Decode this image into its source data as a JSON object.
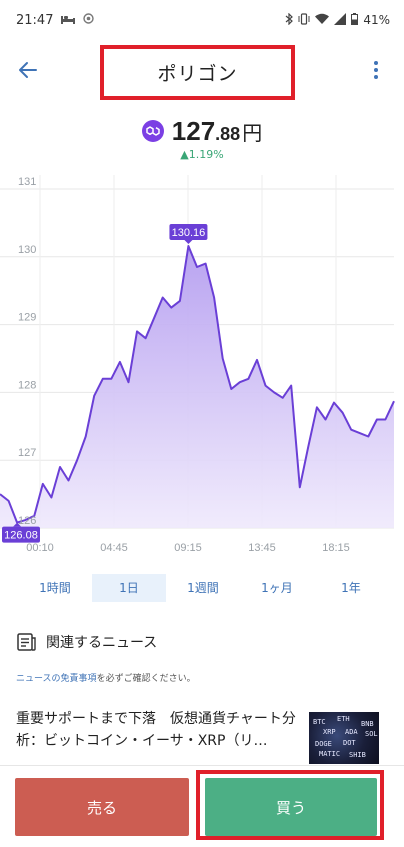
{
  "status_bar": {
    "time": "21:47",
    "battery": "41%",
    "icons": [
      "bed-icon",
      "notification-icon",
      "bluetooth-icon",
      "vibrate-icon",
      "wifi-icon",
      "signal-icon",
      "battery-icon"
    ]
  },
  "app_bar": {
    "title": "ポリゴン",
    "back_icon": "back-arrow-icon",
    "menu_icon": "more-vert-icon"
  },
  "price": {
    "integer": "127",
    "decimal": ".88",
    "unit": "円",
    "change": "1.19%",
    "change_color": "#3aa676"
  },
  "chart_data": {
    "type": "area",
    "y_ticks": [
      "131",
      "130",
      "129",
      "128",
      "127",
      "126"
    ],
    "x_ticks": [
      "00:10",
      "04:45",
      "09:15",
      "13:45",
      "18:15"
    ],
    "ylim": [
      126,
      131
    ],
    "high_label": "130.16",
    "low_label": "126.08",
    "line_color": "#6a3fd6",
    "fill_color": "#c9b7f2",
    "series": [
      {
        "values": [
          126.5,
          126.4,
          126.08,
          126.12,
          126.18,
          126.65,
          126.45,
          126.9,
          126.7,
          127.0,
          127.35,
          127.95,
          128.2,
          128.2,
          128.45,
          128.15,
          128.9,
          128.8,
          129.1,
          129.4,
          129.25,
          129.35,
          130.16,
          129.85,
          129.9,
          129.4,
          128.5,
          128.05,
          128.15,
          128.2,
          128.48,
          128.1,
          128.0,
          127.92,
          128.1,
          126.6,
          127.2,
          127.78,
          127.6,
          127.85,
          127.7,
          127.45,
          127.4,
          127.35,
          127.6,
          127.6,
          127.87
        ]
      }
    ]
  },
  "period_tabs": [
    "1時間",
    "1日",
    "1週間",
    "1ヶ月",
    "1年"
  ],
  "active_tab": "1日",
  "news": {
    "section_title": "関連するニュース",
    "disclaimer_link": "ニュースの免責事項",
    "disclaimer_rest": "を必ずご確認ください。",
    "item_headline": "重要サポートまで下落　仮想通貨チャート分析：ビットコイン・イーサ・XRP（リ…",
    "thumb_labels": [
      "BTC",
      "ETH",
      "BNB",
      "XRP",
      "ADA",
      "SOL",
      "DOGE",
      "DOT",
      "MATIC",
      "SHIB"
    ]
  },
  "actions": {
    "sell_label": "売る",
    "buy_label": "買う",
    "sell_color": "#cc5d52",
    "buy_color": "#4caf85"
  }
}
